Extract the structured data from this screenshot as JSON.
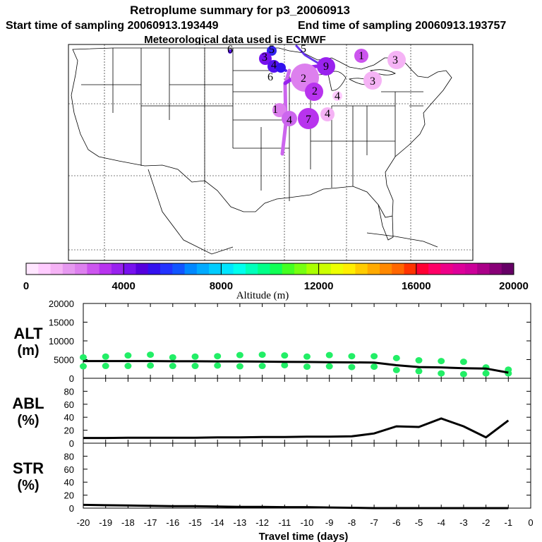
{
  "header": {
    "title": "Retroplume summary for p3_20060913",
    "start_time": "Start time of sampling 20060913.193449",
    "end_time": "End time of sampling 20060913.193757",
    "met_data": "Meteorological data used is ECMWF"
  },
  "colorbar": {
    "xlabel": "Altitude (m)",
    "range": [
      0,
      20000
    ],
    "tick_values": [
      0,
      4000,
      8000,
      12000,
      16000,
      20000
    ],
    "tick_labels": [
      "0",
      "4000",
      "8000",
      "12000",
      "16000",
      "20000"
    ],
    "colors": [
      "#ffe6ff",
      "#ffccff",
      "#f5b3f5",
      "#e699f0",
      "#dd80ee",
      "#cc55ee",
      "#b833ee",
      "#9922ee",
      "#7711ee",
      "#5500dd",
      "#3311ee",
      "#2233ff",
      "#1155ff",
      "#0088ff",
      "#00aaff",
      "#00ccff",
      "#00e5ff",
      "#00ffee",
      "#00ffbb",
      "#00ff88",
      "#11ff55",
      "#44ff22",
      "#77ff11",
      "#aaff00",
      "#ccff00",
      "#eeff00",
      "#ffee00",
      "#ffcc00",
      "#ffaa00",
      "#ff8800",
      "#ff6600",
      "#ff3300",
      "#ff0033",
      "#ff0066",
      "#ee0088",
      "#dd0099",
      "#cc0099",
      "#aa0088",
      "#880077",
      "#660066"
    ]
  },
  "map": {
    "region": "Contiguous United States",
    "labels": [
      {
        "text": "6"
      },
      {
        "text": "5"
      },
      {
        "text": "5"
      },
      {
        "text": "3"
      },
      {
        "text": "4"
      },
      {
        "text": "6"
      },
      {
        "text": "2"
      },
      {
        "text": "2"
      },
      {
        "text": "9"
      },
      {
        "text": "1"
      },
      {
        "text": "3"
      },
      {
        "text": "4"
      },
      {
        "text": "3"
      },
      {
        "text": "1"
      },
      {
        "text": "4"
      },
      {
        "text": "7"
      },
      {
        "text": "4"
      }
    ]
  },
  "chart_data": [
    {
      "type": "scatter",
      "name": "ALT",
      "ylabel_line1": "ALT",
      "ylabel_line2": "(m)",
      "ylim": [
        0,
        20000
      ],
      "yticks": [
        0,
        5000,
        10000,
        15000,
        20000
      ],
      "ytick_labels": [
        "0",
        "5000",
        "10000",
        "15000",
        "20000"
      ],
      "line": {
        "x": [
          -20,
          -19,
          -18,
          -17,
          -16,
          -15,
          -14,
          -13,
          -12,
          -11,
          -10,
          -9,
          -8,
          -7,
          -6,
          -5,
          -4,
          -3,
          -2,
          -1
        ],
        "y": [
          4600,
          4600,
          4600,
          4600,
          4550,
          4550,
          4500,
          4500,
          4450,
          4400,
          4350,
          4300,
          4250,
          4200,
          3500,
          3000,
          2900,
          2700,
          2600,
          1500
        ]
      },
      "points": [
        {
          "x": -20,
          "y": [
            5600,
            3200
          ]
        },
        {
          "x": -19,
          "y": [
            5800,
            3300
          ]
        },
        {
          "x": -18,
          "y": [
            6100,
            3300
          ]
        },
        {
          "x": -17,
          "y": [
            6300,
            3400
          ]
        },
        {
          "x": -16,
          "y": [
            5600,
            3300
          ]
        },
        {
          "x": -15,
          "y": [
            5800,
            3300
          ]
        },
        {
          "x": -14,
          "y": [
            5900,
            3400
          ]
        },
        {
          "x": -13,
          "y": [
            6200,
            3200
          ]
        },
        {
          "x": -12,
          "y": [
            6300,
            3300
          ]
        },
        {
          "x": -11,
          "y": [
            6100,
            3500
          ]
        },
        {
          "x": -10,
          "y": [
            5800,
            3100
          ]
        },
        {
          "x": -9,
          "y": [
            6200,
            3200
          ]
        },
        {
          "x": -8,
          "y": [
            5900,
            3000
          ]
        },
        {
          "x": -7,
          "y": [
            5900,
            3100
          ]
        },
        {
          "x": -6,
          "y": [
            5400,
            2200
          ]
        },
        {
          "x": -5,
          "y": [
            4800,
            1900
          ]
        },
        {
          "x": -4,
          "y": [
            4600,
            1300
          ]
        },
        {
          "x": -3,
          "y": [
            4400,
            1100
          ]
        },
        {
          "x": -2,
          "y": [
            2900,
            1300
          ]
        },
        {
          "x": -1,
          "y": [
            2300,
            1300
          ]
        }
      ]
    },
    {
      "type": "line",
      "name": "ABL",
      "ylabel_line1": "ABL",
      "ylabel_line2": "(%)",
      "ylim": [
        0,
        100
      ],
      "yticks": [
        0,
        20,
        40,
        60,
        80
      ],
      "ytick_labels": [
        "0",
        "20",
        "40",
        "60",
        "80"
      ],
      "x": [
        -20,
        -19,
        -18,
        -17,
        -16,
        -15,
        -14,
        -13,
        -12,
        -11,
        -10,
        -9,
        -8,
        -7,
        -6,
        -5,
        -4,
        -3,
        -2,
        -1
      ],
      "y": [
        8,
        8,
        8.5,
        8.5,
        8.5,
        8.5,
        9,
        9,
        9.5,
        9.5,
        10,
        10,
        10.5,
        15,
        26,
        25,
        38,
        26,
        9,
        35
      ]
    },
    {
      "type": "line",
      "name": "STR",
      "ylabel_line1": "STR",
      "ylabel_line2": "(%)",
      "ylim": [
        0,
        100
      ],
      "yticks": [
        0,
        20,
        40,
        60,
        80
      ],
      "ytick_labels": [
        "0",
        "20",
        "40",
        "60",
        "80"
      ],
      "x": [
        -20,
        -19,
        -18,
        -17,
        -16,
        -15,
        -14,
        -13,
        -12,
        -11,
        -10,
        -9,
        -8,
        -7,
        -6,
        -5,
        -4,
        -3,
        -2,
        -1
      ],
      "y": [
        5,
        4.5,
        4,
        3.5,
        3,
        3,
        2.5,
        2,
        2,
        1.5,
        1.5,
        1,
        0.5,
        0,
        0,
        0,
        0,
        0,
        0,
        0
      ]
    }
  ],
  "xaxis": {
    "label": "Travel time (days)",
    "ticks": [
      -20,
      -19,
      -18,
      -17,
      -16,
      -15,
      -14,
      -13,
      -12,
      -11,
      -10,
      -9,
      -8,
      -7,
      -6,
      -5,
      -4,
      -3,
      -2,
      -1,
      0
    ],
    "tick_labels": [
      "-20",
      "-19",
      "-18",
      "-17",
      "-16",
      "-15",
      "-14",
      "-13",
      "-12",
      "-11",
      "-10",
      "-9",
      "-8",
      "-7",
      "-6",
      "-5",
      "-4",
      "-3",
      "-2",
      "-1",
      "0"
    ],
    "range": [
      -20,
      0
    ]
  },
  "colors": {
    "points": "#22ee66",
    "line": "#000000"
  }
}
